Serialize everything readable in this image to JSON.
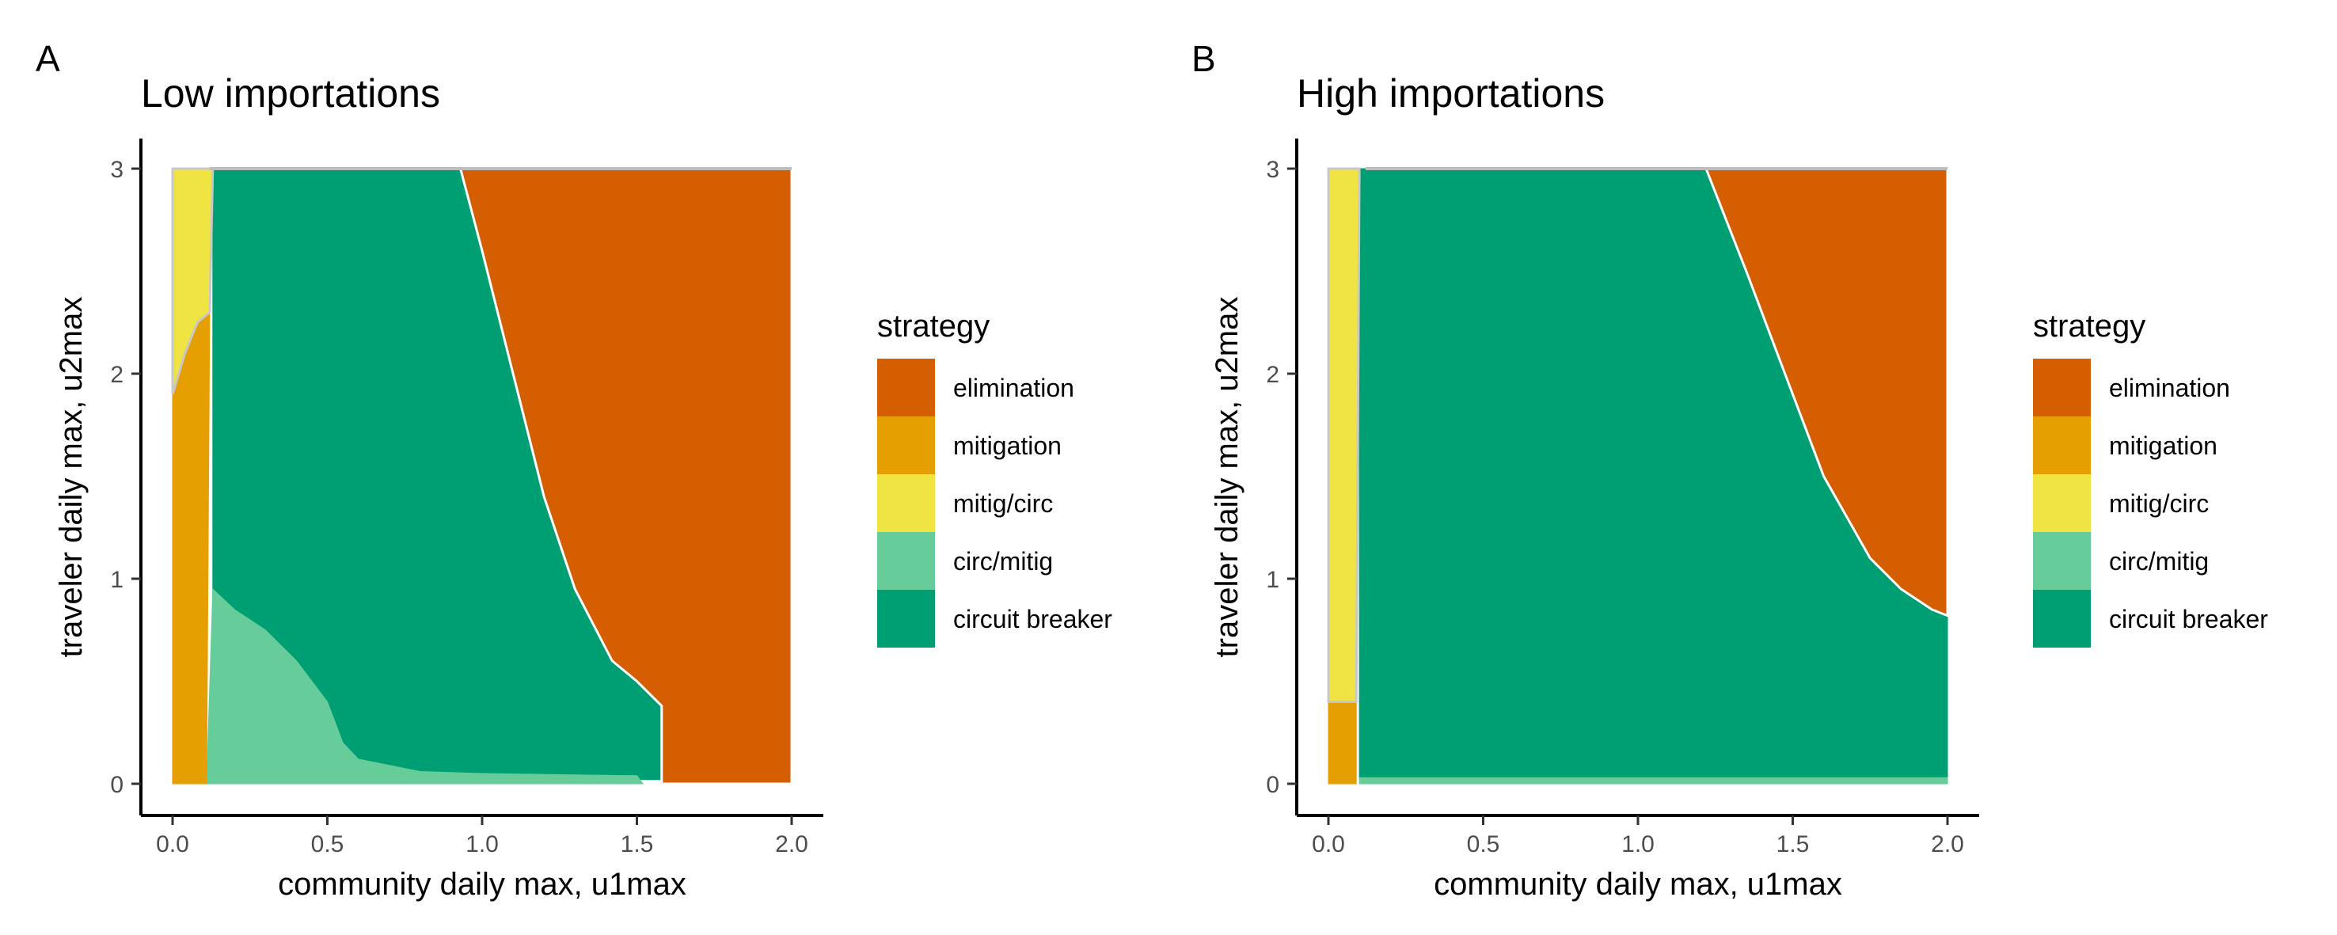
{
  "chart_data": [
    {
      "type": "heatmap",
      "panel_label": "A",
      "title": "Low importations",
      "xlabel": "community daily max, u1max",
      "ylabel": "traveler daily max, u2max",
      "xlim": [
        0,
        2
      ],
      "ylim": [
        0,
        3
      ],
      "xticks": [
        "0.0",
        "0.5",
        "1.0",
        "1.5",
        "2.0"
      ],
      "xtick_values": [
        0,
        0.5,
        1,
        1.5,
        2
      ],
      "yticks": [
        "0",
        "1",
        "2",
        "3"
      ],
      "ytick_values": [
        0,
        1,
        2,
        3
      ],
      "regions": [
        {
          "strategy": "elimination",
          "points": [
            [
              0.93,
              3
            ],
            [
              2,
              3
            ],
            [
              2,
              0
            ],
            [
              1.58,
              0
            ],
            [
              1.58,
              0.38
            ],
            [
              1.5,
              0.5
            ],
            [
              1.42,
              0.6
            ],
            [
              1.3,
              0.95
            ],
            [
              1.2,
              1.4
            ],
            [
              1.1,
              2.0
            ],
            [
              1.0,
              2.6
            ]
          ]
        },
        {
          "strategy": "circuit breaker",
          "points": [
            [
              0.13,
              3
            ],
            [
              0.93,
              3
            ],
            [
              1.0,
              2.6
            ],
            [
              1.1,
              2.0
            ],
            [
              1.2,
              1.4
            ],
            [
              1.3,
              0.95
            ],
            [
              1.42,
              0.6
            ],
            [
              1.5,
              0.5
            ],
            [
              1.58,
              0.38
            ],
            [
              1.58,
              0.02
            ],
            [
              0.12,
              0.02
            ],
            [
              0.13,
              0.95
            ]
          ]
        },
        {
          "strategy": "circ/mitig",
          "points": [
            [
              0.13,
              0.95
            ],
            [
              0.2,
              0.85
            ],
            [
              0.3,
              0.75
            ],
            [
              0.4,
              0.6
            ],
            [
              0.5,
              0.4
            ],
            [
              0.55,
              0.2
            ],
            [
              0.6,
              0.12
            ],
            [
              0.8,
              0.06
            ],
            [
              1.0,
              0.05
            ],
            [
              1.45,
              0.04
            ],
            [
              1.5,
              0.04
            ],
            [
              1.52,
              0
            ],
            [
              0.11,
              0
            ]
          ]
        },
        {
          "strategy": "mitigation",
          "points": [
            [
              0,
              0
            ],
            [
              0.11,
              0
            ],
            [
              0.12,
              2.3
            ],
            [
              0.08,
              2.25
            ],
            [
              0.04,
              2.1
            ],
            [
              0,
              1.9
            ]
          ]
        },
        {
          "strategy": "mitig/circ",
          "points": [
            [
              0,
              1.9
            ],
            [
              0.04,
              2.1
            ],
            [
              0.08,
              2.25
            ],
            [
              0.12,
              2.3
            ],
            [
              0.13,
              3
            ],
            [
              0,
              3
            ]
          ]
        }
      ]
    },
    {
      "type": "heatmap",
      "panel_label": "B",
      "title": "High importations",
      "xlabel": "community daily max, u1max",
      "ylabel": "traveler daily max, u2max",
      "xlim": [
        0,
        2
      ],
      "ylim": [
        0,
        3
      ],
      "xticks": [
        "0.0",
        "0.5",
        "1.0",
        "1.5",
        "2.0"
      ],
      "xtick_values": [
        0,
        0.5,
        1,
        1.5,
        2
      ],
      "yticks": [
        "0",
        "1",
        "2",
        "3"
      ],
      "ytick_values": [
        0,
        1,
        2,
        3
      ],
      "regions": [
        {
          "strategy": "elimination",
          "points": [
            [
              1.22,
              3
            ],
            [
              2,
              3
            ],
            [
              2,
              0.82
            ],
            [
              1.95,
              0.85
            ],
            [
              1.85,
              0.95
            ],
            [
              1.75,
              1.1
            ],
            [
              1.6,
              1.5
            ],
            [
              1.45,
              2.1
            ],
            [
              1.35,
              2.5
            ]
          ]
        },
        {
          "strategy": "circuit breaker",
          "points": [
            [
              0.1,
              3
            ],
            [
              1.22,
              3
            ],
            [
              1.35,
              2.5
            ],
            [
              1.45,
              2.1
            ],
            [
              1.6,
              1.5
            ],
            [
              1.75,
              1.1
            ],
            [
              1.85,
              0.95
            ],
            [
              1.95,
              0.85
            ],
            [
              2,
              0.82
            ],
            [
              2,
              0.03
            ],
            [
              0.1,
              0.03
            ]
          ]
        },
        {
          "strategy": "circ/mitig",
          "points": [
            [
              0.1,
              0
            ],
            [
              2,
              0
            ],
            [
              2,
              0.03
            ],
            [
              0.1,
              0.03
            ]
          ]
        },
        {
          "strategy": "mitigation",
          "points": [
            [
              0,
              0
            ],
            [
              0.09,
              0
            ],
            [
              0.09,
              0.4
            ],
            [
              0,
              0.4
            ]
          ]
        },
        {
          "strategy": "mitig/circ",
          "points": [
            [
              0,
              0.4
            ],
            [
              0.09,
              0.4
            ],
            [
              0.1,
              3
            ],
            [
              0,
              3
            ]
          ]
        }
      ]
    }
  ],
  "legend": {
    "title": "strategy",
    "placement": "right",
    "items": [
      {
        "label": "elimination",
        "color": "#D55E00"
      },
      {
        "label": "mitigation",
        "color": "#E69F00"
      },
      {
        "label": "mitig/circ",
        "color": "#F0E442"
      },
      {
        "label": "circ/mitig",
        "color": "#66CC99"
      },
      {
        "label": "circuit breaker",
        "color": "#009E73"
      }
    ]
  }
}
